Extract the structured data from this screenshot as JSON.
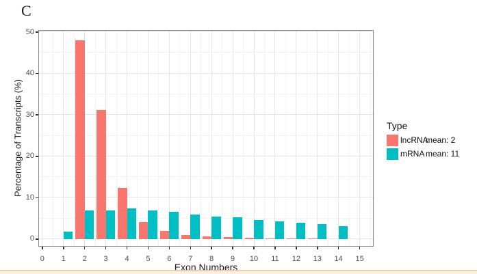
{
  "panel_label": "C",
  "colors": {
    "lncRNA": "#F8766D",
    "mRNA": "#00BFC4",
    "panel_border": "#8a8a8a",
    "grid_major": "#e5e5e5",
    "grid_minor": "#f3f3f3",
    "tick_label": "#4d4d4d",
    "axis_title": "#1a1a1a",
    "bottom_line": "#f3cda5",
    "bottom_band": "#fcf1e2"
  },
  "chart_data": {
    "type": "bar",
    "title": "",
    "xlabel": "Exon Numbers",
    "ylabel": "Percentage of Transcripts (%)",
    "legend_title": "Type",
    "legend_position": "right",
    "grid": true,
    "x": [
      1,
      2,
      3,
      4,
      5,
      6,
      7,
      8,
      9,
      10,
      11,
      12,
      13,
      14,
      15
    ],
    "series": [
      {
        "name": "lncRNA",
        "mean_label": "mean: 2",
        "color": "#F8766D",
        "values": [
          0,
          48,
          31.2,
          12.4,
          4.2,
          1.9,
          1.0,
          0.7,
          0.5,
          0.3,
          0.2,
          0.2,
          0.15,
          0,
          0
        ]
      },
      {
        "name": "mRNA",
        "mean_label": "mean: 11",
        "color": "#00BFC4",
        "values": [
          1.8,
          6.9,
          7.0,
          7.4,
          7.0,
          6.6,
          5.9,
          5.5,
          5.2,
          4.7,
          4.3,
          3.9,
          3.6,
          3.1,
          0
        ]
      }
    ],
    "x_ticks": [
      0,
      1,
      2,
      3,
      4,
      5,
      6,
      7,
      8,
      9,
      10,
      11,
      12,
      13,
      14,
      15
    ],
    "y_ticks": [
      0,
      10,
      20,
      30,
      40,
      50
    ],
    "xlim": [
      -0.19,
      15.66
    ],
    "ylim": [
      -1.82,
      50.5
    ]
  }
}
